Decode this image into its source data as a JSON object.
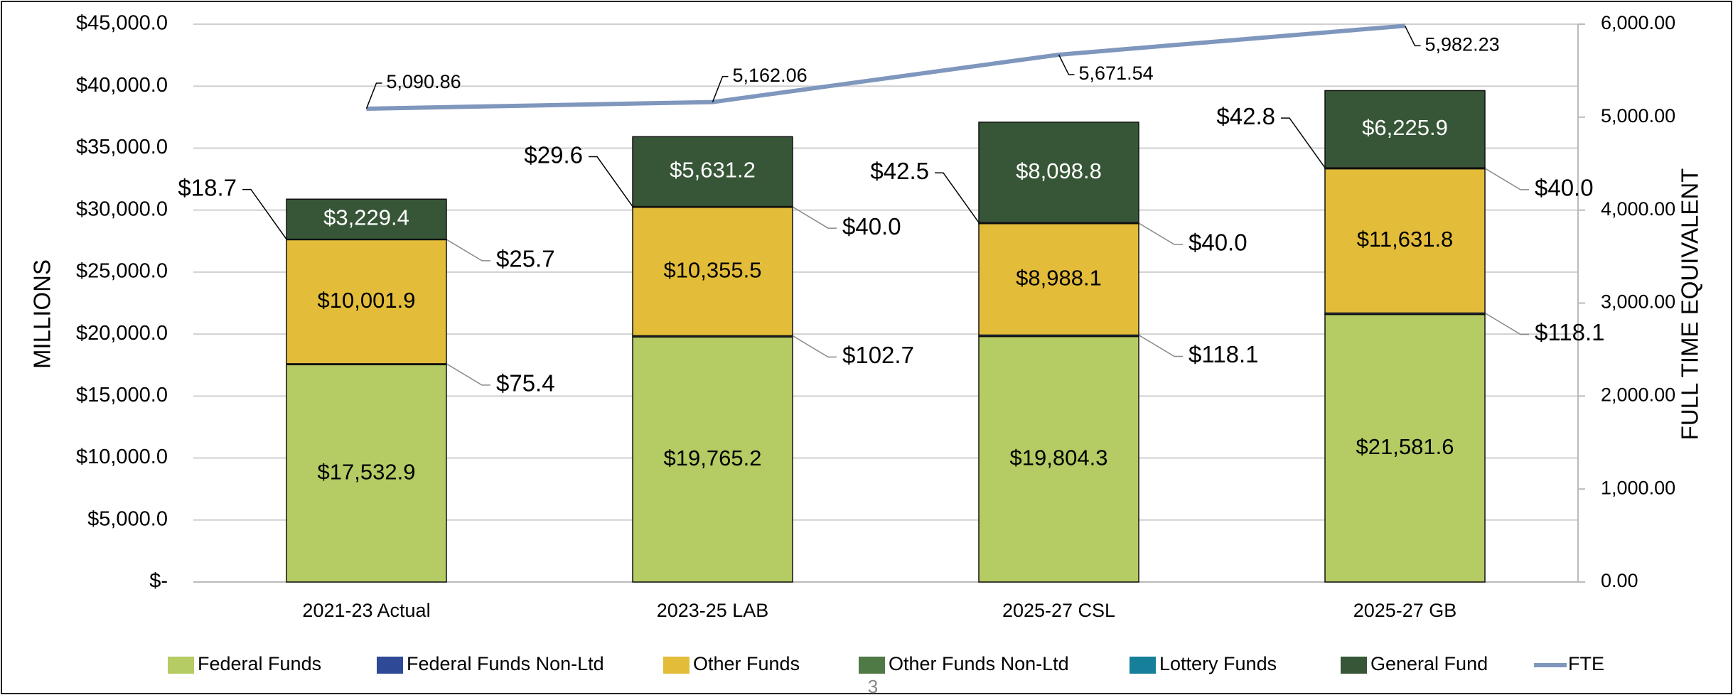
{
  "chart_data": {
    "type": "bar",
    "stacked": true,
    "y_label": "MILLIONS",
    "y2_label": "FULL TIME EQUIVALENT",
    "categories": [
      "2021-23 Actual",
      "2023-25 LAB",
      "2025-27 CSL",
      "2025-27 GB"
    ],
    "series": [
      {
        "name": "Federal Funds",
        "color": "#b5cb63",
        "values": [
          17532.9,
          19765.2,
          19804.3,
          21581.6
        ],
        "value_labels": [
          "$17,532.9",
          "$19,765.2",
          "$19,804.3",
          "$21,581.6"
        ]
      },
      {
        "name": "Federal Funds Non-Ltd",
        "color": "#2e4a96",
        "values": [
          75.4,
          102.7,
          118.1,
          118.1
        ],
        "value_labels": [
          "$75.4",
          "$102.7",
          "$118.1",
          "$118.1"
        ]
      },
      {
        "name": "Other Funds",
        "color": "#e3bd3a",
        "values": [
          10001.9,
          10355.5,
          8988.1,
          11631.8
        ],
        "value_labels": [
          "$10,001.9",
          "$10,355.5",
          "$8,988.1",
          "$11,631.8"
        ]
      },
      {
        "name": "Other Funds Non-Ltd",
        "color": "#4f7a46",
        "values": [
          25.7,
          40.0,
          40.0,
          40.0
        ],
        "value_labels": [
          "$25.7",
          "$40.0",
          "$40.0",
          "$40.0"
        ]
      },
      {
        "name": "Lottery Funds",
        "color": "#167f9a",
        "values": [
          18.7,
          29.6,
          42.5,
          42.8
        ],
        "value_labels": [
          "$18.7",
          "$29.6",
          "$42.5",
          "$42.8"
        ]
      },
      {
        "name": "General Fund",
        "color": "#375637",
        "values": [
          3229.4,
          5631.2,
          8098.8,
          6225.9
        ],
        "value_labels": [
          "$3,229.4",
          "$5,631.2",
          "$8,098.8",
          "$6,225.9"
        ]
      },
      {
        "name": "FTE",
        "color": "#7f97bd",
        "type": "line",
        "axis": "y2",
        "values": [
          5090.86,
          5162.06,
          5671.54,
          5982.23
        ],
        "value_labels": [
          "5,090.86",
          "5,162.06",
          "5,671.54",
          "5,982.23"
        ]
      }
    ],
    "ylim": [
      0,
      45000
    ],
    "yticks": [
      {
        "value": 0,
        "label": "$-"
      },
      {
        "value": 5000,
        "label": "$5,000.0"
      },
      {
        "value": 10000,
        "label": "$10,000.0"
      },
      {
        "value": 15000,
        "label": "$15,000.0"
      },
      {
        "value": 20000,
        "label": "$20,000.0"
      },
      {
        "value": 25000,
        "label": "$25,000.0"
      },
      {
        "value": 30000,
        "label": "$30,000.0"
      },
      {
        "value": 35000,
        "label": "$35,000.0"
      },
      {
        "value": 40000,
        "label": "$40,000.0"
      },
      {
        "value": 45000,
        "label": "$45,000.0"
      }
    ],
    "y2lim": [
      0,
      6000
    ],
    "y2ticks": [
      {
        "value": 0,
        "label": "0.00"
      },
      {
        "value": 1000,
        "label": "1,000.00"
      },
      {
        "value": 2000,
        "label": "2,000.00"
      },
      {
        "value": 3000,
        "label": "3,000.00"
      },
      {
        "value": 4000,
        "label": "4,000.00"
      },
      {
        "value": 5000,
        "label": "5,000.00"
      },
      {
        "value": 6000,
        "label": "6,000.00"
      }
    ],
    "grid": true,
    "legend": "bottom",
    "page_number": "3"
  }
}
